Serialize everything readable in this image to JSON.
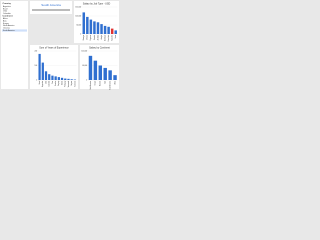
{
  "sidebar": {
    "title": "Country",
    "rows": [
      "Argentina",
      "Brazil",
      "Chile",
      "Colombia"
    ],
    "filter_title": "Continent",
    "filters": [
      "Africa",
      "Asia",
      "Europe",
      "North America",
      "Oceania",
      "South America"
    ],
    "selected": 5
  },
  "kpi": {
    "title": "South America"
  },
  "chart_data": [
    {
      "type": "bar",
      "title": "Salary by Job Type - USD",
      "categories": [
        "Manager",
        "Director",
        "Engineer",
        "Scientist",
        "Architect",
        "Analyst",
        "Developer",
        "Consultant",
        "Specialist",
        "Intern"
      ],
      "values": [
        120000,
        95000,
        80000,
        70000,
        65000,
        55000,
        45000,
        40000,
        30000,
        20000
      ],
      "colors": [
        "#2f6fd0",
        "#2f6fd0",
        "#2f6fd0",
        "#2f6fd0",
        "#2f6fd0",
        "#2f6fd0",
        "#2f6fd0",
        "#2f6fd0",
        "#e03030",
        "#2f6fd0"
      ],
      "ylim": [
        0,
        150000
      ],
      "yticks": [
        {
          "value": 0,
          "label": "0"
        },
        {
          "value": 50000,
          "label": "50,000"
        },
        {
          "value": 100000,
          "label": "100,000"
        },
        {
          "value": 150000,
          "label": "150,000"
        }
      ],
      "grid": true
    },
    {
      "type": "bar",
      "title": "Sum of Years of Experience",
      "categories": [
        "Brazil",
        "Argentina",
        "Chile",
        "Colombia",
        "Peru",
        "Ecuador",
        "Uruguay",
        "Bolivia",
        "Paraguay",
        "Venezuela",
        "Guyana",
        "Suriname"
      ],
      "values": [
        180,
        120,
        60,
        40,
        30,
        25,
        20,
        15,
        10,
        8,
        5,
        3
      ],
      "color": "#2f6fd0",
      "ylim": [
        0,
        200
      ],
      "yticks": [
        0,
        100,
        200
      ],
      "grid": true
    },
    {
      "type": "bar",
      "title": "Salary by Continent",
      "categories": [
        "North America",
        "Europe",
        "Oceania",
        "Asia",
        "South America",
        "Africa"
      ],
      "values": [
        100000,
        80000,
        60000,
        50000,
        40000,
        20000
      ],
      "color": "#2f6fd0",
      "ylim": [
        0,
        120000
      ],
      "yticks": [
        {
          "value": 0,
          "label": "0"
        },
        {
          "value": 60000,
          "label": "60,000"
        },
        {
          "value": 120000,
          "label": "120,000"
        }
      ],
      "grid": true
    }
  ]
}
